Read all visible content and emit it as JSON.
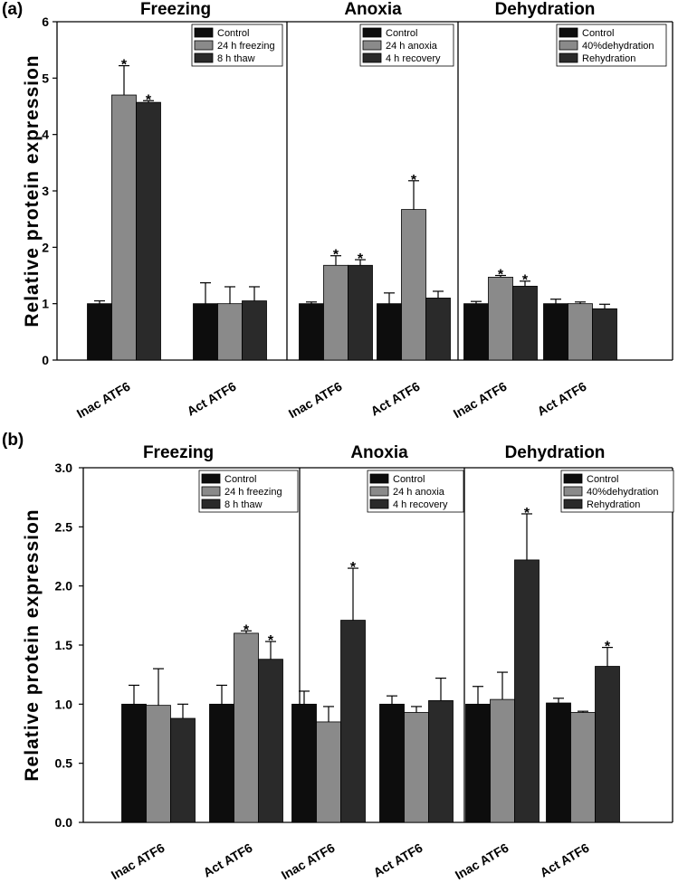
{
  "chart_data": [
    {
      "panel_label": "(a)",
      "type": "bar",
      "ylabel": "Relative protein expression",
      "ylim": [
        0,
        6
      ],
      "yticks": [
        "0",
        "1",
        "2",
        "3",
        "4",
        "5",
        "6"
      ],
      "colors": [
        "#0d0d0d",
        "#8a8a8a",
        "#2a2a2a"
      ],
      "groups": [
        {
          "title": "Freezing",
          "legend": [
            "Control",
            "24 h freezing",
            "8 h thaw"
          ],
          "categories": [
            "Inac ATF6",
            "Act ATF6"
          ],
          "series": [
            {
              "values": [
                1.0,
                1.0
              ],
              "errors": [
                0.05,
                0.37
              ],
              "sig": [
                false,
                false
              ]
            },
            {
              "values": [
                4.7,
                1.0
              ],
              "errors": [
                0.52,
                0.3
              ],
              "sig": [
                true,
                false
              ]
            },
            {
              "values": [
                4.57,
                1.05
              ],
              "errors": [
                0.03,
                0.25
              ],
              "sig": [
                true,
                false
              ]
            }
          ]
        },
        {
          "title": "Anoxia",
          "legend": [
            "Control",
            "24 h anoxia",
            "4 h recovery"
          ],
          "categories": [
            "Inac ATF6",
            "Act ATF6"
          ],
          "series": [
            {
              "values": [
                1.0,
                1.0
              ],
              "errors": [
                0.03,
                0.19
              ],
              "sig": [
                false,
                false
              ]
            },
            {
              "values": [
                1.68,
                2.67
              ],
              "errors": [
                0.17,
                0.51
              ],
              "sig": [
                true,
                true
              ]
            },
            {
              "values": [
                1.68,
                1.1
              ],
              "errors": [
                0.1,
                0.12
              ],
              "sig": [
                true,
                false
              ]
            }
          ]
        },
        {
          "title": "Dehydration",
          "legend": [
            "Control",
            "40%dehydration",
            "Rehydration"
          ],
          "categories": [
            "Inac ATF6",
            "Act ATF6"
          ],
          "series": [
            {
              "values": [
                1.0,
                1.0
              ],
              "errors": [
                0.04,
                0.08
              ],
              "sig": [
                false,
                false
              ]
            },
            {
              "values": [
                1.47,
                1.0
              ],
              "errors": [
                0.03,
                0.03
              ],
              "sig": [
                true,
                false
              ]
            },
            {
              "values": [
                1.31,
                0.91
              ],
              "errors": [
                0.09,
                0.08
              ],
              "sig": [
                true,
                false
              ]
            }
          ]
        }
      ]
    },
    {
      "panel_label": "(b)",
      "type": "bar",
      "ylabel": "Relative protein expression",
      "ylim": [
        0,
        3
      ],
      "yticks": [
        "0.0",
        "0.5",
        "1.0",
        "1.5",
        "2.0",
        "2.5",
        "3.0"
      ],
      "colors": [
        "#0d0d0d",
        "#8a8a8a",
        "#2a2a2a"
      ],
      "groups": [
        {
          "title": "Freezing",
          "legend": [
            "Control",
            "24 h freezing",
            "8 h thaw"
          ],
          "categories": [
            "Inac ATF6",
            "Act ATF6"
          ],
          "series": [
            {
              "values": [
                1.0,
                1.0
              ],
              "errors": [
                0.16,
                0.16
              ],
              "sig": [
                false,
                false
              ]
            },
            {
              "values": [
                0.99,
                1.6
              ],
              "errors": [
                0.31,
                0.02
              ],
              "sig": [
                false,
                true
              ]
            },
            {
              "values": [
                0.88,
                1.38
              ],
              "errors": [
                0.12,
                0.15
              ],
              "sig": [
                false,
                true
              ]
            }
          ]
        },
        {
          "title": "Anoxia",
          "legend": [
            "Control",
            "24 h anoxia",
            "4 h recovery"
          ],
          "categories": [
            "Inac ATF6",
            "Act ATF6"
          ],
          "series": [
            {
              "values": [
                1.0,
                1.0
              ],
              "errors": [
                0.11,
                0.07
              ],
              "sig": [
                false,
                false
              ]
            },
            {
              "values": [
                0.85,
                0.93
              ],
              "errors": [
                0.13,
                0.05
              ],
              "sig": [
                false,
                false
              ]
            },
            {
              "values": [
                1.71,
                1.03
              ],
              "errors": [
                0.44,
                0.19
              ],
              "sig": [
                true,
                false
              ]
            }
          ]
        },
        {
          "title": "Dehydration",
          "legend": [
            "Control",
            "40%dehydration",
            "Rehydration"
          ],
          "categories": [
            "Inac ATF6",
            "Act ATF6"
          ],
          "series": [
            {
              "values": [
                1.0,
                1.01
              ],
              "errors": [
                0.15,
                0.04
              ],
              "sig": [
                false,
                false
              ]
            },
            {
              "values": [
                1.04,
                0.93
              ],
              "errors": [
                0.23,
                0.01
              ],
              "sig": [
                false,
                false
              ]
            },
            {
              "values": [
                2.22,
                1.32
              ],
              "errors": [
                0.39,
                0.16
              ],
              "sig": [
                true,
                true
              ]
            }
          ]
        }
      ]
    }
  ]
}
